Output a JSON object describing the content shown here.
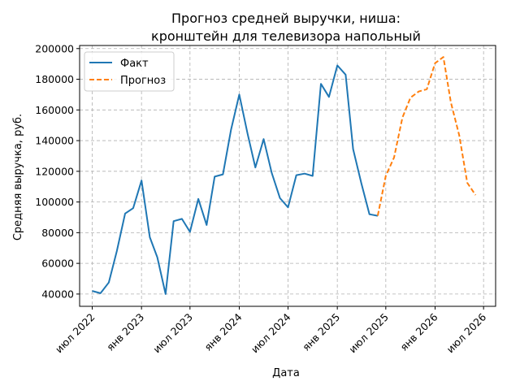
{
  "chart_data": {
    "type": "line",
    "title_lines": [
      "Прогноз средней выручки, ниша:",
      "кронштейн для телевизора напольный"
    ],
    "xlabel": "Дата",
    "ylabel": "Средняя выручка, руб.",
    "x_ticks": [
      {
        "date": "2022-07-01",
        "label": "июл 2022"
      },
      {
        "date": "2023-01-01",
        "label": "янв 2023"
      },
      {
        "date": "2023-07-01",
        "label": "июл 2023"
      },
      {
        "date": "2024-01-01",
        "label": "янв 2024"
      },
      {
        "date": "2024-07-01",
        "label": "июл 2024"
      },
      {
        "date": "2025-01-01",
        "label": "янв 2025"
      },
      {
        "date": "2025-07-01",
        "label": "июл 2025"
      },
      {
        "date": "2026-01-01",
        "label": "янв 2026"
      },
      {
        "date": "2026-07-01",
        "label": "июл 2026"
      }
    ],
    "y_ticks": [
      40000,
      60000,
      80000,
      100000,
      120000,
      140000,
      160000,
      180000,
      200000
    ],
    "y_tick_labels": [
      "40000",
      "60000",
      "80000",
      "100000",
      "120000",
      "140000",
      "160000",
      "180000",
      "200000"
    ],
    "ylim": [
      32000,
      202000
    ],
    "xlim": [
      "2022-05-15",
      "2026-08-15"
    ],
    "grid": true,
    "legend_position": "top-left",
    "series": [
      {
        "name": "Факт",
        "color": "#1f77b4",
        "style": "solid",
        "x": [
          "2022-07-01",
          "2022-08-01",
          "2022-09-01",
          "2022-10-01",
          "2022-11-01",
          "2022-12-01",
          "2023-01-01",
          "2023-02-01",
          "2023-03-01",
          "2023-04-01",
          "2023-05-01",
          "2023-06-01",
          "2023-07-01",
          "2023-08-01",
          "2023-09-01",
          "2023-10-01",
          "2023-11-01",
          "2023-12-01",
          "2024-01-01",
          "2024-02-01",
          "2024-03-01",
          "2024-04-01",
          "2024-05-01",
          "2024-06-01",
          "2024-07-01",
          "2024-08-01",
          "2024-09-01",
          "2024-10-01",
          "2024-11-01",
          "2024-12-01",
          "2025-01-01",
          "2025-02-01",
          "2025-03-01",
          "2025-04-01",
          "2025-05-01",
          "2025-06-01"
        ],
        "values": [
          42000,
          40500,
          47500,
          68000,
          92500,
          96000,
          114000,
          77000,
          64000,
          40000,
          87500,
          89000,
          80500,
          102000,
          85000,
          116500,
          118000,
          147000,
          170000,
          144500,
          122500,
          141000,
          119000,
          102500,
          96500,
          117500,
          118500,
          117000,
          177000,
          168500,
          189000,
          183000,
          134500,
          112000,
          92000,
          91000
        ]
      },
      {
        "name": "Прогноз",
        "color": "#ff7f0e",
        "style": "dashed",
        "x": [
          "2025-06-01",
          "2025-07-01",
          "2025-08-01",
          "2025-09-01",
          "2025-10-01",
          "2025-11-01",
          "2025-12-01",
          "2026-01-01",
          "2026-02-01",
          "2026-03-01",
          "2026-04-01",
          "2026-05-01",
          "2026-06-01"
        ],
        "values": [
          91000,
          117000,
          129000,
          155000,
          168000,
          172000,
          173500,
          190500,
          194500,
          165000,
          143500,
          112500,
          104500
        ]
      }
    ]
  }
}
